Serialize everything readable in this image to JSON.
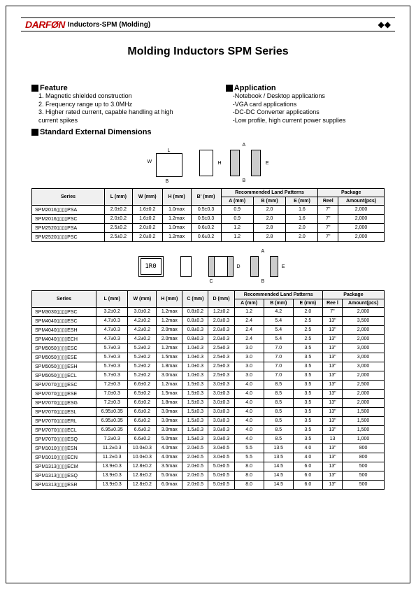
{
  "header": {
    "brand_part1": "DARF",
    "brand_o": "Ø",
    "brand_part2": "N",
    "title": "Inductors-SPM (Molding)",
    "icon": "◆◆"
  },
  "main_title": "Molding Inductors SPM Series",
  "feature": {
    "heading": "Feature",
    "items": [
      "1. Magnetic shielded construction",
      "2. Frequency range up to 3.0MHz",
      "3. Higher rated current, capable handling at high",
      "    current spikes"
    ]
  },
  "application": {
    "heading": "Application",
    "items": [
      "Notebook / Desktop applications",
      "VGA card applications",
      "DC-DC Converter applications",
      "Low profile, high current power supplies"
    ]
  },
  "dimensions_heading": "Standard External Dimensions",
  "diagram_labels": {
    "L": "L",
    "W": "W",
    "H": "H",
    "B": "B",
    "E": "E",
    "A": "A",
    "IR0": "1R0",
    "C": "C",
    "D": "D"
  },
  "table1": {
    "headers": {
      "series": "Series",
      "L": "L (mm)",
      "W": "W (mm)",
      "H": "H (mm)",
      "Bp": "B' (mm)",
      "rec": "Recommended Land Patterns",
      "A": "A (mm)",
      "B": "B (mm)",
      "E": "E (mm)",
      "pkg": "Package",
      "reel": "Reel",
      "amt": "Amount(pcs)"
    },
    "rows": [
      {
        "series": "SPM2016▯▯▯▯PSA",
        "L": "2.0±0.2",
        "W": "1.6±0.2",
        "H": "1.0max",
        "Bp": "0.5±0.3",
        "A": "0.9",
        "B": "2.0",
        "E": "1.6",
        "reel": "7\"",
        "amt": "2,000"
      },
      {
        "series": "SPM2016▯▯▯▯PSC",
        "L": "2.0±0.2",
        "W": "1.6±0.2",
        "H": "1.2max",
        "Bp": "0.5±0.3",
        "A": "0.9",
        "B": "2.0",
        "E": "1.6",
        "reel": "7\"",
        "amt": "2,000"
      },
      {
        "series": "SPM2520▯▯▯▯PSA",
        "L": "2.5±0.2",
        "W": "2.0±0.2",
        "H": "1.0max",
        "Bp": "0.6±0.2",
        "A": "1.2",
        "B": "2.8",
        "E": "2.0",
        "reel": "7\"",
        "amt": "2,000"
      },
      {
        "series": "SPM2520▯▯▯▯PSC",
        "L": "2.5±0.2",
        "W": "2.0±0.2",
        "H": "1.2max",
        "Bp": "0.6±0.2",
        "A": "1.2",
        "B": "2.8",
        "E": "2.0",
        "reel": "7\"",
        "amt": "2,000"
      }
    ]
  },
  "table2": {
    "headers": {
      "series": "Series",
      "L": "L (mm)",
      "W": "W (mm)",
      "H": "H (mm)",
      "C": "C (mm)",
      "D": "D (mm)",
      "rec": "Recommended Land Patterns",
      "A": "A (mm)",
      "B": "B (mm)",
      "E": "E (mm)",
      "pkg": "Package",
      "reel": "Ree l",
      "amt": "Amount(pcs)"
    },
    "rows": [
      {
        "series": "SPM3030▯▯▯▯PSC",
        "L": "3.2±0.2",
        "W": "3.0±0.2",
        "H": "1.2max",
        "C": "0.8±0.2",
        "D": "1.2±0.2",
        "A": "1.2",
        "B": "4.2",
        "E": "2.0",
        "reel": "7\"",
        "amt": "2,000"
      },
      {
        "series": "SPM4040▯▯▯▯ESC",
        "L": "4.7±0.3",
        "W": "4.2±0.2",
        "H": "1.2max",
        "C": "0.8±0.3",
        "D": "2.0±0.3",
        "A": "2.4",
        "B": "5.4",
        "E": "2.5",
        "reel": "13\"",
        "amt": "3,500"
      },
      {
        "series": "SPM4040▯▯▯▯ESH",
        "L": "4.7±0.3",
        "W": "4.2±0.2",
        "H": "2.0max",
        "C": "0.8±0.3",
        "D": "2.0±0.3",
        "A": "2.4",
        "B": "5.4",
        "E": "2.5",
        "reel": "13\"",
        "amt": "2,000"
      },
      {
        "series": "SPM4040▯▯▯▯ECH",
        "L": "4.7±0.3",
        "W": "4.2±0.2",
        "H": "2.0max",
        "C": "0.8±0.3",
        "D": "2.0±0.3",
        "A": "2.4",
        "B": "5.4",
        "E": "2.5",
        "reel": "13\"",
        "amt": "2,000"
      },
      {
        "series": "SPM5050▯▯▯▯ESC",
        "L": "5.7±0.3",
        "W": "5.2±0.2",
        "H": "1.2max",
        "C": "1.0±0.3",
        "D": "2.5±0.3",
        "A": "3.0",
        "B": "7.0",
        "E": "3.5",
        "reel": "13\"",
        "amt": "3,000"
      },
      {
        "series": "SPM5050▯▯▯▯ESE",
        "L": "5.7±0.3",
        "W": "5.2±0.2",
        "H": "1.5max",
        "C": "1.0±0.3",
        "D": "2.5±0.3",
        "A": "3.0",
        "B": "7.0",
        "E": "3.5",
        "reel": "13\"",
        "amt": "3,000"
      },
      {
        "series": "SPM5050▯▯▯▯ESH",
        "L": "5.7±0.3",
        "W": "5.2±0.2",
        "H": "1.8max",
        "C": "1.0±0.3",
        "D": "2.5±0.3",
        "A": "3.0",
        "B": "7.0",
        "E": "3.5",
        "reel": "13\"",
        "amt": "3,000"
      },
      {
        "series": "SPM5050▯▯▯▯ECL",
        "L": "5.7±0.3",
        "W": "5.2±0.2",
        "H": "3.0max",
        "C": "1.0±0.3",
        "D": "2.5±0.3",
        "A": "3.0",
        "B": "7.0",
        "E": "3.5",
        "reel": "13\"",
        "amt": "2,000"
      },
      {
        "series": "SPM7070▯▯▯▯ESC",
        "L": "7.2±0.3",
        "W": "6.6±0.2",
        "H": "1.2max",
        "C": "1.5±0.3",
        "D": "3.0±0.3",
        "A": "4.0",
        "B": "8.5",
        "E": "3.5",
        "reel": "13\"",
        "amt": "2,500"
      },
      {
        "series": "SPM7070▯▯▯▯ESE",
        "L": "7.0±0.3",
        "W": "6.5±0.2",
        "H": "1.5max",
        "C": "1.5±0.3",
        "D": "3.0±0.3",
        "A": "4.0",
        "B": "8.5",
        "E": "3.5",
        "reel": "13\"",
        "amt": "2,000"
      },
      {
        "series": "SPM7070▯▯▯▯ESG",
        "L": "7.2±0.3",
        "W": "6.6±0.2",
        "H": "1.8max",
        "C": "1.5±0.3",
        "D": "3.0±0.3",
        "A": "4.0",
        "B": "8.5",
        "E": "3.5",
        "reel": "13\"",
        "amt": "2,000"
      },
      {
        "series": "SPM7070▯▯▯▯ESL",
        "L": "6.95±0.35",
        "W": "6.6±0.2",
        "H": "3.0max",
        "C": "1.5±0.3",
        "D": "3.0±0.3",
        "A": "4.0",
        "B": "8.5",
        "E": "3.5",
        "reel": "13\"",
        "amt": "1,500"
      },
      {
        "series": "SPM7070▯▯▯▯ERL",
        "L": "6.95±0.35",
        "W": "6.6±0.2",
        "H": "3.0max",
        "C": "1.5±0.3",
        "D": "3.0±0.3",
        "A": "4.0",
        "B": "8.5",
        "E": "3.5",
        "reel": "13\"",
        "amt": "1,500"
      },
      {
        "series": "SPM7070▯▯▯▯ECL",
        "L": "6.95±0.35",
        "W": "6.6±0.2",
        "H": "3.0max",
        "C": "1.5±0.3",
        "D": "3.0±0.3",
        "A": "4.0",
        "B": "8.5",
        "E": "3.5",
        "reel": "13\"",
        "amt": "1,500"
      },
      {
        "series": "SPM7070▯▯▯▯ESQ",
        "L": "7.2±0.3",
        "W": "6.6±0.2",
        "H": "5.0max",
        "C": "1.5±0.3",
        "D": "3.0±0.3",
        "A": "4.0",
        "B": "8.5",
        "E": "3.5",
        "reel": "13",
        "amt": "1,000"
      },
      {
        "series": "SPM1010▯▯▯▯ESN",
        "L": "11.2±0.3",
        "W": "10.0±0.3",
        "H": "4.0max",
        "C": "2.0±0.5",
        "D": "3.0±0.5",
        "A": "5.5",
        "B": "13.5",
        "E": "4.0",
        "reel": "13\"",
        "amt": "800"
      },
      {
        "series": "SPM1010▯▯▯▯ECN",
        "L": "11.2±0.3",
        "W": "10.0±0.3",
        "H": "4.0max",
        "C": "2.0±0.5",
        "D": "3.0±0.5",
        "A": "5.5",
        "B": "13.5",
        "E": "4.0",
        "reel": "13\"",
        "amt": "800"
      },
      {
        "series": "SPM1313▯▯▯▯ECM",
        "L": "13.9±0.3",
        "W": "12.8±0.2",
        "H": "3.5max",
        "C": "2.0±0.5",
        "D": "5.0±0.5",
        "A": "8.0",
        "B": "14.5",
        "E": "6.0",
        "reel": "13\"",
        "amt": "500"
      },
      {
        "series": "SPM1313▯▯▯▯ESQ",
        "L": "13.9±0.3",
        "W": "12.8±0.2",
        "H": "5.0max",
        "C": "2.0±0.5",
        "D": "5.0±0.5",
        "A": "8.0",
        "B": "14.5",
        "E": "6.0",
        "reel": "13\"",
        "amt": "500"
      },
      {
        "series": "SPM1313▯▯▯▯ESR",
        "L": "13.9±0.3",
        "W": "12.8±0.2",
        "H": "6.0max",
        "C": "2.0±0.5",
        "D": "5.0±0.5",
        "A": "8.0",
        "B": "14.5",
        "E": "6.0",
        "reel": "13\"",
        "amt": "500"
      }
    ]
  }
}
